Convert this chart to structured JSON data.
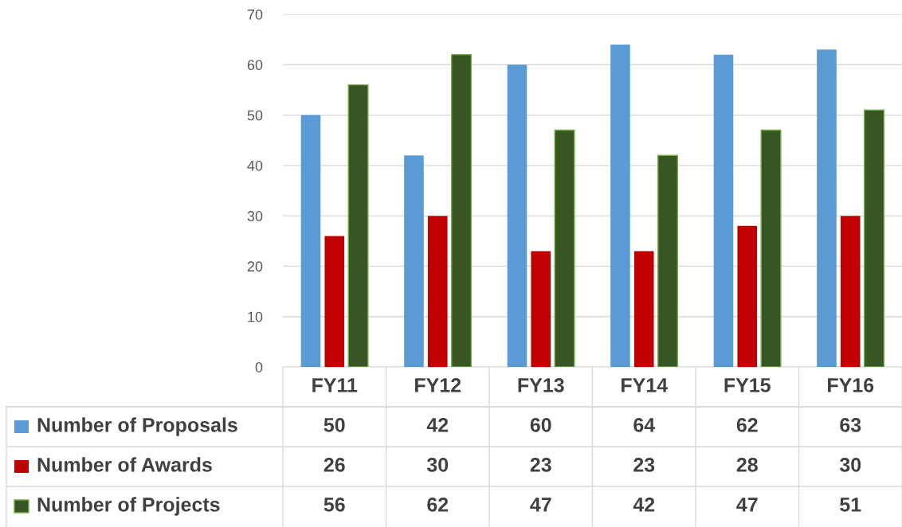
{
  "chart_data": {
    "type": "bar",
    "categories": [
      "FY11",
      "FY12",
      "FY13",
      "FY14",
      "FY15",
      "FY16"
    ],
    "series": [
      {
        "name": "Number of Proposals",
        "color": "#5b9bd5",
        "values": [
          50,
          42,
          60,
          64,
          62,
          63
        ]
      },
      {
        "name": "Number of Awards",
        "color": "#c00000",
        "values": [
          26,
          30,
          23,
          23,
          28,
          30
        ]
      },
      {
        "name": "Number of Projects",
        "color": "#375623",
        "values": [
          56,
          62,
          47,
          42,
          47,
          51
        ]
      }
    ],
    "ylim": [
      0,
      70
    ],
    "yticks": [
      0,
      10,
      20,
      30,
      40,
      50,
      60,
      70
    ],
    "grid": "y",
    "data_labels": true,
    "legend": "bottom"
  }
}
